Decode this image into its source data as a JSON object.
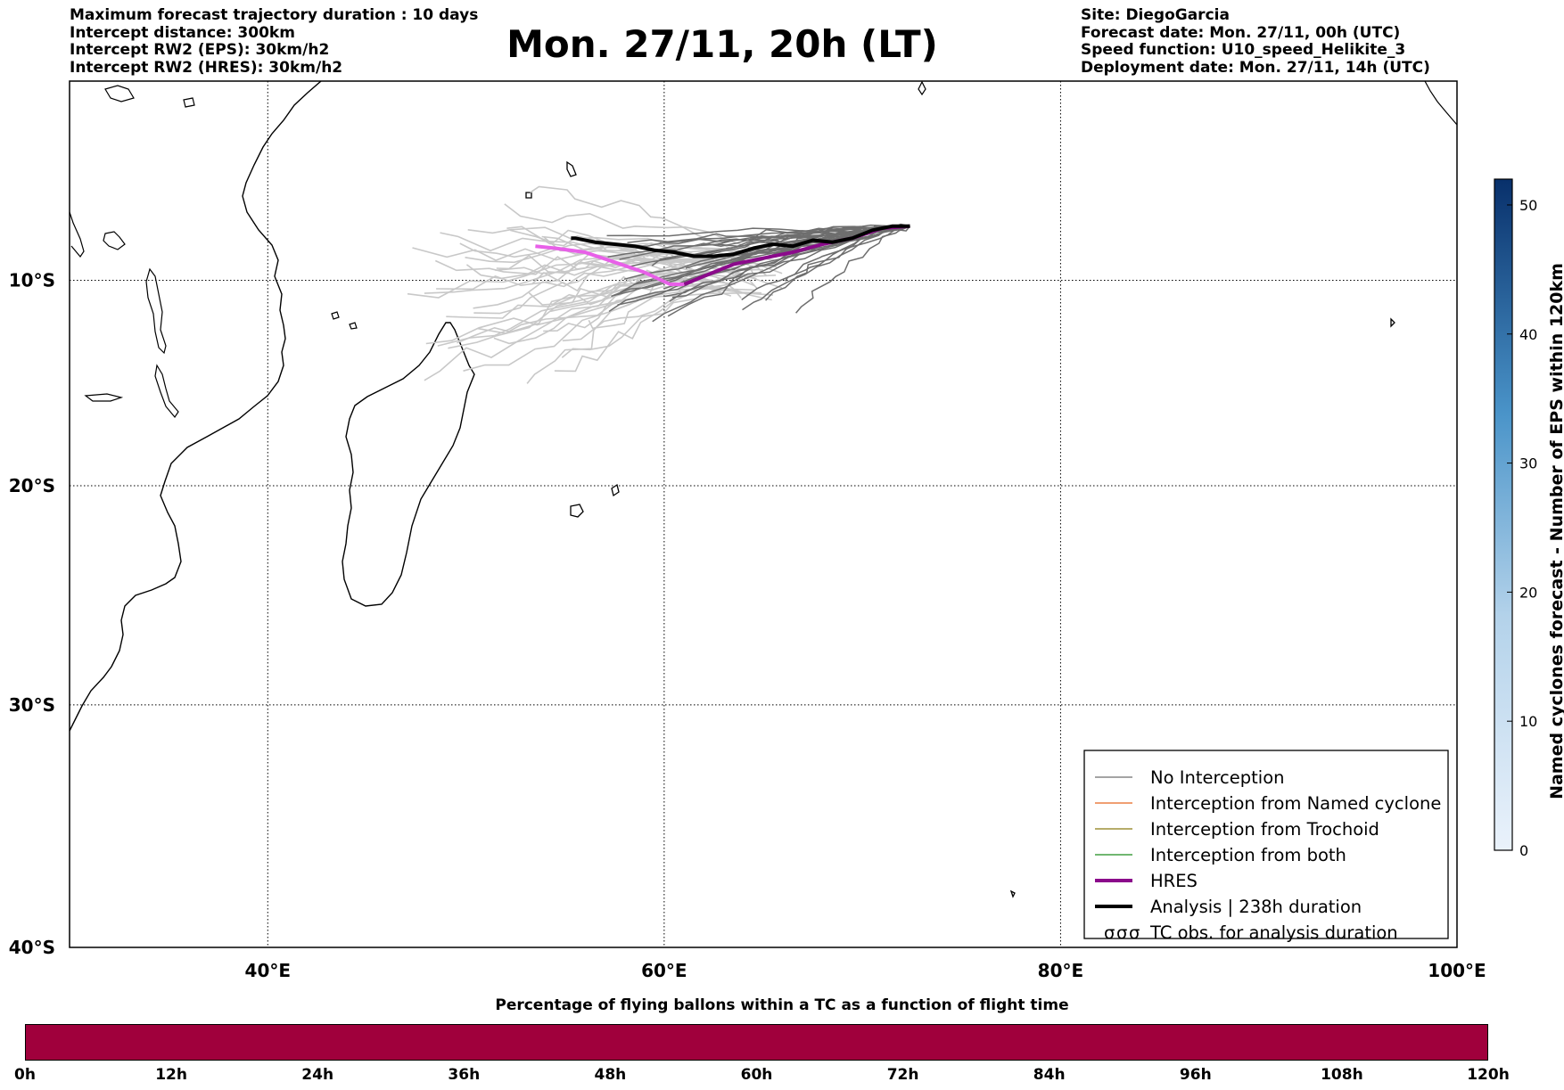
{
  "header": {
    "left": [
      "Maximum forecast trajectory duration : 10 days",
      "Intercept distance: 300km",
      "Intercept RW2 (EPS):  30km/h2",
      "Intercept RW2 (HRES): 30km/h2"
    ],
    "title": "Mon. 27/11, 20h (LT)",
    "right": [
      "Site: DiegoGarcia",
      "Forecast date: Mon. 27/11, 00h (UTC)",
      "Speed function: U10_speed_Helikite_3",
      "Deployment date: Mon. 27/11, 14h (UTC)"
    ]
  },
  "map": {
    "extent": {
      "lon": [
        30,
        100
      ],
      "lat": [
        -40,
        0
      ]
    },
    "lon_ticks": [
      {
        "value": 40,
        "label": "40°E"
      },
      {
        "value": 60,
        "label": "60°E"
      },
      {
        "value": 80,
        "label": "80°E"
      },
      {
        "value": 100,
        "label": "100°E"
      }
    ],
    "lat_ticks": [
      {
        "value": -10,
        "label": "10°S"
      },
      {
        "value": -20,
        "label": "20°S"
      },
      {
        "value": -30,
        "label": "30°S"
      },
      {
        "value": -40,
        "label": "40°S"
      }
    ],
    "launch_site": {
      "lon": 72.4,
      "lat": -7.3
    },
    "colors": {
      "no_interception": "#6e6e6e",
      "eps_light": "#c8c8c8",
      "hres": "#8b0a8b",
      "hres_light": "#e860e8",
      "analysis": "#000000",
      "land": "#ffffff",
      "coast": "#000000"
    },
    "hres_track": [
      [
        72.4,
        -7.3
      ],
      [
        71,
        -7.4
      ],
      [
        69.5,
        -7.9
      ],
      [
        68,
        -8.2
      ],
      [
        66.5,
        -8.6
      ],
      [
        65,
        -8.9
      ],
      [
        63.5,
        -9.2
      ],
      [
        62,
        -9.8
      ],
      [
        61,
        -10.2
      ],
      [
        60.3,
        -10.2
      ],
      [
        59,
        -9.6
      ],
      [
        57.5,
        -9.1
      ],
      [
        56,
        -8.6
      ],
      [
        54.5,
        -8.4
      ],
      [
        53.5,
        -8.3
      ]
    ],
    "analysis_track": [
      [
        72.4,
        -7.3
      ],
      [
        71.5,
        -7.3
      ],
      [
        70.5,
        -7.5
      ],
      [
        69.5,
        -7.9
      ],
      [
        68.5,
        -8.1
      ],
      [
        67.5,
        -8.0
      ],
      [
        66.5,
        -8.3
      ],
      [
        65.5,
        -8.2
      ],
      [
        64.5,
        -8.4
      ],
      [
        63.5,
        -8.7
      ],
      [
        62.5,
        -8.8
      ],
      [
        61.5,
        -8.8
      ],
      [
        60.5,
        -8.6
      ],
      [
        59.5,
        -8.5
      ],
      [
        58.5,
        -8.3
      ],
      [
        57.5,
        -8.2
      ],
      [
        56.5,
        -8.1
      ],
      [
        55.5,
        -7.9
      ],
      [
        55.3,
        -7.9
      ]
    ]
  },
  "legend": {
    "items": [
      {
        "label": "No Interception",
        "color": "#6e6e6e",
        "style": "thin"
      },
      {
        "label": "Interception from Named cyclone",
        "color": "#e8661e",
        "style": "thin"
      },
      {
        "label": "Interception from Trochoid",
        "color": "#8a7a10",
        "style": "thin"
      },
      {
        "label": "Interception from both",
        "color": "#1a8c1a",
        "style": "thin"
      },
      {
        "label": "HRES",
        "color": "#8b0a8b",
        "style": "thick"
      },
      {
        "label": "Analysis | 238h duration",
        "color": "#000000",
        "style": "thick"
      },
      {
        "label": "TC obs. for analysis duration",
        "color": "#000000",
        "style": "cyclone"
      }
    ]
  },
  "colorbar": {
    "title": "Named cyclones forecast - Number of EPS within 120km",
    "range": [
      0,
      52
    ],
    "ticks": [
      0,
      10,
      20,
      30,
      40,
      50
    ],
    "colors": {
      "low": "#e8f1fb",
      "high": "#0a306b"
    }
  },
  "time_bar": {
    "title": "Percentage of flying ballons within a TC as a function of flight time",
    "color": "#a0003c",
    "range_hours": [
      0,
      120
    ],
    "labels": [
      "0h",
      "12h",
      "24h",
      "36h",
      "48h",
      "60h",
      "72h",
      "84h",
      "96h",
      "108h",
      "120h"
    ]
  }
}
